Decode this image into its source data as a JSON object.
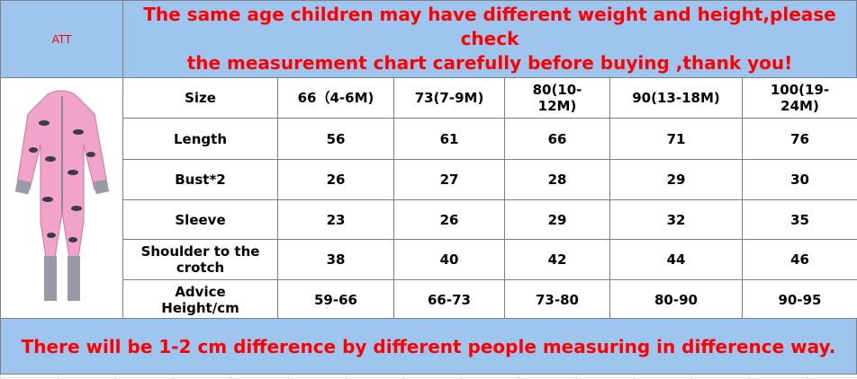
{
  "header": {
    "att": "ATT",
    "title_lines": [
      "The same age children may have different weight and height,please check",
      "the measurement chart carefully before buying ,thank you!"
    ]
  },
  "table": {
    "rows": [
      [
        "Size",
        "66（4-6M)",
        "73(7-9M)",
        "80(10-12M)",
        "90(13-18M)",
        "100(19-24M)"
      ],
      [
        "Length",
        "56",
        "61",
        "66",
        "71",
        "76"
      ],
      [
        "Bust*2",
        "26",
        "27",
        "28",
        "29",
        "30"
      ],
      [
        "Sleeve",
        "23",
        "26",
        "29",
        "32",
        "35"
      ],
      [
        "Shoulder to the crotch",
        "38",
        "40",
        "42",
        "44",
        "46"
      ],
      [
        "Advice Height/cm",
        "59-66",
        "66-73",
        "73-80",
        "80-90",
        "90-95"
      ]
    ]
  },
  "footer": {
    "note": "There will be 1-2 cm difference by different people measuring in difference way."
  }
}
